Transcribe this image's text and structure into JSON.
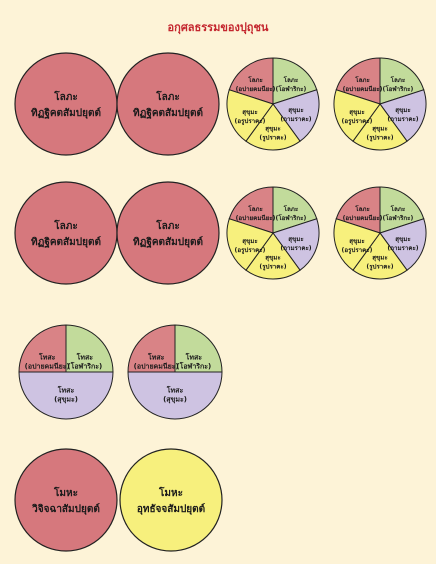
{
  "title": "อกุศลธรรมของปุถุชน",
  "colors": {
    "background": "#fdf3d7",
    "title": "#c4262e",
    "lobha": "#d98386",
    "lobha_big": "#d6787d",
    "green": "#c2db9b",
    "purple": "#cec3e2",
    "yellow": "#f7f07d",
    "stroke": "#222222"
  },
  "rows": [
    {
      "big_circles": [
        {
          "line1": "โลภะ",
          "line2": "ทิฏฐิคตสัมปยุตต์",
          "color_key": "lobha_big"
        },
        {
          "line1": "โลภะ",
          "line2": "ทิฏฐิคตสัมปยุตต์",
          "color_key": "lobha_big"
        }
      ],
      "pies": [
        {
          "segments": [
            {
              "line1": "โลภะ",
              "line2": "(อปายคมนียะ)",
              "color_key": "lobha"
            },
            {
              "line1": "โลภะ",
              "line2": "(โอฬาริกะ)",
              "color_key": "green"
            },
            {
              "line1": "สุขุมะ",
              "line2": "(กามราคะ)",
              "color_key": "purple"
            },
            {
              "line1": "สุขุมะ",
              "line2": "(รูปราคะ)",
              "color_key": "yellow"
            },
            {
              "line1": "สุขุมะ",
              "line2": "(อรูปราคะ)",
              "color_key": "yellow"
            }
          ]
        },
        {
          "segments": [
            {
              "line1": "โลภะ",
              "line2": "(อปายคมนียะ)",
              "color_key": "lobha"
            },
            {
              "line1": "โลภะ",
              "line2": "(โอฬาริกะ)",
              "color_key": "green"
            },
            {
              "line1": "สุขุมะ",
              "line2": "(กามราคะ)",
              "color_key": "purple"
            },
            {
              "line1": "สุขุมะ",
              "line2": "(รูปราคะ)",
              "color_key": "yellow"
            },
            {
              "line1": "สุขุมะ",
              "line2": "(อรูปราคะ)",
              "color_key": "yellow"
            }
          ]
        }
      ]
    },
    {
      "big_circles": [
        {
          "line1": "โลภะ",
          "line2": "ทิฏฐิคตสัมปยุตต์",
          "color_key": "lobha_big"
        },
        {
          "line1": "โลภะ",
          "line2": "ทิฏฐิคตสัมปยุตต์",
          "color_key": "lobha_big"
        }
      ],
      "pies": [
        {
          "segments": [
            {
              "line1": "โลภะ",
              "line2": "(อปายคมนียะ)",
              "color_key": "lobha"
            },
            {
              "line1": "โลภะ",
              "line2": "(โอฬาริกะ)",
              "color_key": "green"
            },
            {
              "line1": "สุขุมะ",
              "line2": "(กามราคะ)",
              "color_key": "purple"
            },
            {
              "line1": "สุขุมะ",
              "line2": "(รูปราคะ)",
              "color_key": "yellow"
            },
            {
              "line1": "สุขุมะ",
              "line2": "(อรูปราคะ)",
              "color_key": "yellow"
            }
          ]
        },
        {
          "segments": [
            {
              "line1": "โลภะ",
              "line2": "(อปายคมนียะ)",
              "color_key": "lobha"
            },
            {
              "line1": "โลภะ",
              "line2": "(โอฬาริกะ)",
              "color_key": "green"
            },
            {
              "line1": "สุขุมะ",
              "line2": "(กามราคะ)",
              "color_key": "purple"
            },
            {
              "line1": "สุขุมะ",
              "line2": "(รูปราคะ)",
              "color_key": "yellow"
            },
            {
              "line1": "สุขุมะ",
              "line2": "(อรูปราคะ)",
              "color_key": "yellow"
            }
          ]
        }
      ]
    }
  ],
  "dosa_pies": [
    {
      "segments": [
        {
          "line1": "โทสะ",
          "line2": "(อปายคมนียะ)",
          "color_key": "lobha"
        },
        {
          "line1": "โทสะ",
          "line2": "(โอฬาริกะ)",
          "color_key": "green"
        },
        {
          "line1": "โทสะ",
          "line2": "(สุขุมะ)",
          "color_key": "purple"
        }
      ]
    },
    {
      "segments": [
        {
          "line1": "โทสะ",
          "line2": "(อปายคมนียะ)",
          "color_key": "lobha"
        },
        {
          "line1": "โทสะ",
          "line2": "(โอฬาริกะ)",
          "color_key": "green"
        },
        {
          "line1": "โทสะ",
          "line2": "(สุขุมะ)",
          "color_key": "purple"
        }
      ]
    }
  ],
  "moha_circles": [
    {
      "line1": "โมหะ",
      "line2": "วิจิจฉาสัมปยุตต์",
      "color_key": "lobha_big"
    },
    {
      "line1": "โมหะ",
      "line2": "อุทธัจจสัมปยุตต์",
      "color_key": "yellow"
    }
  ]
}
